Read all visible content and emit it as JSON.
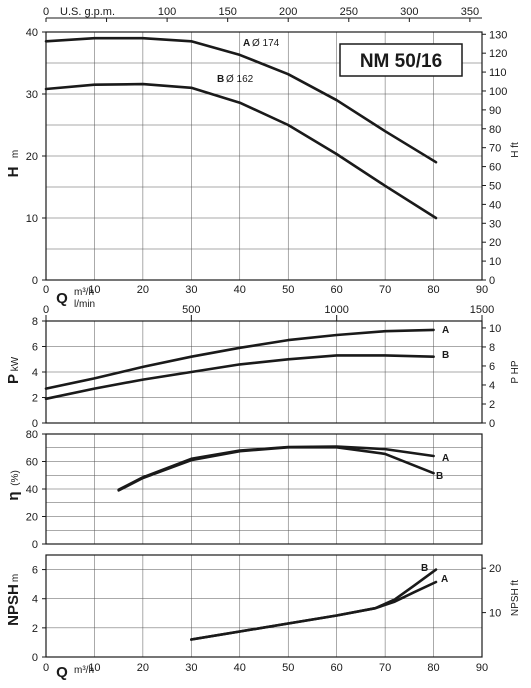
{
  "model": "NM 50/16",
  "colors": {
    "curve": "#1a1a1a",
    "grid": "#555555",
    "frame": "#1a1a1a"
  },
  "chart_data": [
    {
      "type": "line",
      "panel": "head",
      "top_axis": {
        "label": "U.S. g.p.m.",
        "range": [
          0,
          360
        ],
        "ticks": [
          0,
          50,
          100,
          150,
          200,
          250,
          300,
          350
        ]
      },
      "xlabel": "Q",
      "xunit_top": "m³/h",
      "xunit_bottom": "l/min",
      "xlim": [
        0,
        90
      ],
      "xticks": [
        0,
        10,
        20,
        30,
        40,
        50,
        60,
        70,
        80,
        90
      ],
      "ylabel": "H",
      "yunit": "m",
      "ylim": [
        0,
        40
      ],
      "yticks": [
        0,
        10,
        20,
        30,
        40
      ],
      "y2label": "H ft",
      "y2lim": [
        0,
        131.2
      ],
      "y2ticks": [
        0,
        10,
        20,
        30,
        40,
        50,
        60,
        70,
        80,
        90,
        100,
        110,
        120,
        130
      ],
      "grid": true,
      "series": [
        {
          "name": "A",
          "diameter": "Ø 174",
          "x": [
            0,
            10,
            20,
            30,
            40,
            50,
            60,
            70,
            80.5
          ],
          "y": [
            38.5,
            39.0,
            39.0,
            38.5,
            36.3,
            33.2,
            29.0,
            24.0,
            19.0
          ]
        },
        {
          "name": "B",
          "diameter": "Ø 162",
          "x": [
            0,
            10,
            20,
            30,
            40,
            50,
            60,
            70,
            80.5
          ],
          "y": [
            30.8,
            31.5,
            31.6,
            31.0,
            28.6,
            25.0,
            20.3,
            15.2,
            10.0
          ]
        }
      ]
    },
    {
      "type": "line",
      "panel": "power",
      "top_axis": {
        "label": "l/min",
        "range": [
          0,
          1500
        ],
        "ticks": [
          0,
          500,
          1000,
          1500
        ]
      },
      "xlim": [
        0,
        90
      ],
      "ylabel": "P",
      "yunit": "kW",
      "ylim": [
        0,
        8
      ],
      "yticks": [
        0,
        2,
        4,
        6,
        8
      ],
      "y2label": "P HP",
      "y2lim": [
        0,
        10.73
      ],
      "y2ticks": [
        0,
        2,
        4,
        6,
        8,
        10
      ],
      "grid": true,
      "series": [
        {
          "name": "A",
          "x": [
            0,
            10,
            20,
            30,
            40,
            50,
            60,
            70,
            80
          ],
          "y": [
            2.7,
            3.5,
            4.4,
            5.2,
            5.9,
            6.5,
            6.9,
            7.2,
            7.3
          ]
        },
        {
          "name": "B",
          "x": [
            0,
            10,
            20,
            30,
            40,
            50,
            60,
            70,
            80
          ],
          "y": [
            1.9,
            2.7,
            3.4,
            4.0,
            4.6,
            5.0,
            5.3,
            5.3,
            5.2
          ]
        }
      ]
    },
    {
      "type": "line",
      "panel": "efficiency",
      "xlim": [
        0,
        90
      ],
      "ylabel": "η",
      "yunit": "(%)",
      "ylim": [
        0,
        80
      ],
      "yticks": [
        0,
        20,
        40,
        60,
        80
      ],
      "grid": true,
      "series": [
        {
          "name": "A",
          "x": [
            15,
            20,
            30,
            40,
            50,
            60,
            70,
            80
          ],
          "y": [
            39.5,
            48.5,
            62,
            68,
            70.5,
            70.8,
            69,
            64
          ]
        },
        {
          "name": "B",
          "x": [
            15,
            20,
            30,
            40,
            50,
            60,
            70,
            80
          ],
          "y": [
            39,
            48,
            61,
            67.5,
            70.3,
            70.3,
            65.5,
            51.5
          ]
        }
      ]
    },
    {
      "type": "line",
      "panel": "npsh",
      "xlabel": "Q",
      "xunit": "m³/h",
      "xlim": [
        0,
        90
      ],
      "xticks": [
        0,
        10,
        20,
        30,
        40,
        50,
        60,
        70,
        80,
        90
      ],
      "ylabel": "NPSH",
      "yunit": "m",
      "ylim": [
        0,
        7
      ],
      "yticks": [
        0,
        2,
        4,
        6
      ],
      "y2label": "NPSH ft",
      "y2lim": [
        0,
        22.97
      ],
      "y2ticks": [
        10,
        20
      ],
      "grid": true,
      "series": [
        {
          "name": "A",
          "x": [
            30,
            40,
            50,
            60,
            68,
            72,
            76,
            80.5
          ],
          "y": [
            1.2,
            1.75,
            2.3,
            2.85,
            3.35,
            3.8,
            4.45,
            5.15
          ]
        },
        {
          "name": "B",
          "x": [
            30,
            40,
            50,
            60,
            68,
            72,
            76,
            80.5
          ],
          "y": [
            1.2,
            1.75,
            2.3,
            2.85,
            3.35,
            3.95,
            4.9,
            6.0
          ]
        }
      ]
    }
  ]
}
